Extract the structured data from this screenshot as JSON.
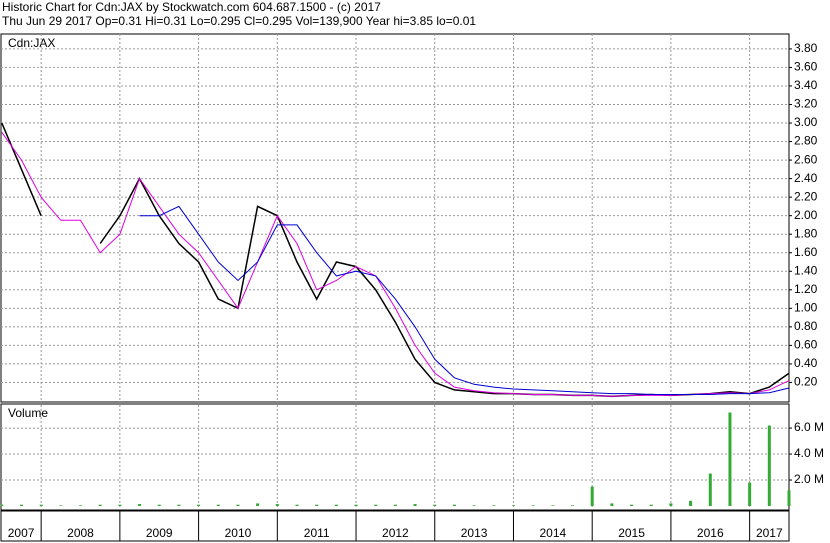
{
  "header": {
    "title": "Historic Chart for Cdn:JAX by Stockwatch.com 604.687.1500 - (c) 2017",
    "subtitle": "Thu Jun 29 2017  Op=0.31  Hi=0.31  Lo=0.295  Cl=0.295  Vol=139,900  Year hi=3.85  lo=0.01"
  },
  "chart_data": [
    {
      "type": "line",
      "label": "Cdn:JAX",
      "x": [
        2007.5,
        2007.75,
        2008.0,
        2008.25,
        2008.5,
        2008.75,
        2009.0,
        2009.25,
        2009.5,
        2009.75,
        2010.0,
        2010.25,
        2010.5,
        2010.75,
        2011.0,
        2011.25,
        2011.5,
        2011.75,
        2012.0,
        2012.25,
        2012.5,
        2012.75,
        2013.0,
        2013.25,
        2013.5,
        2013.75,
        2014.0,
        2014.25,
        2014.5,
        2014.75,
        2015.0,
        2015.25,
        2015.5,
        2015.75,
        2016.0,
        2016.25,
        2016.5,
        2016.75,
        2017.0,
        2017.25,
        2017.5
      ],
      "series": [
        {
          "color": "#000000",
          "values": [
            3.0,
            2.5,
            2.0,
            null,
            null,
            1.7,
            2.0,
            2.4,
            2.0,
            1.7,
            1.5,
            1.1,
            1.0,
            2.1,
            2.0,
            1.5,
            1.1,
            1.5,
            1.45,
            1.2,
            0.85,
            0.45,
            0.2,
            0.12,
            0.1,
            0.08,
            0.08,
            0.07,
            0.07,
            0.06,
            0.06,
            0.05,
            0.06,
            0.07,
            0.06,
            0.07,
            0.08,
            0.1,
            0.08,
            0.15,
            0.3
          ]
        },
        {
          "color": "#e000e0",
          "values": [
            2.9,
            2.6,
            2.2,
            1.95,
            1.95,
            1.6,
            1.8,
            2.4,
            2.1,
            1.8,
            1.6,
            1.3,
            1.0,
            1.5,
            2.0,
            1.7,
            1.2,
            1.3,
            1.45,
            1.35,
            1.0,
            0.6,
            0.3,
            0.15,
            0.11,
            0.09,
            0.08,
            0.07,
            0.07,
            0.06,
            0.06,
            0.05,
            0.06,
            0.06,
            0.06,
            0.07,
            0.08,
            0.09,
            0.08,
            0.12,
            0.22
          ]
        },
        {
          "color": "#0000d0",
          "values": [
            null,
            null,
            null,
            null,
            null,
            null,
            null,
            2.0,
            2.0,
            2.1,
            1.8,
            1.5,
            1.3,
            1.5,
            1.9,
            1.9,
            1.6,
            1.35,
            1.4,
            1.35,
            1.1,
            0.8,
            0.45,
            0.25,
            0.18,
            0.15,
            0.13,
            0.12,
            0.11,
            0.1,
            0.09,
            0.08,
            0.08,
            0.07,
            0.07,
            0.07,
            0.07,
            0.08,
            0.08,
            0.09,
            0.14
          ]
        }
      ],
      "xlim": [
        2007.49,
        2017.5
      ],
      "ylim": [
        0,
        3.95
      ],
      "yticks": [
        {
          "value": 0.2,
          "label": "0.20"
        },
        {
          "value": 0.4,
          "label": "0.40"
        },
        {
          "value": 0.6,
          "label": "0.60"
        },
        {
          "value": 0.8,
          "label": "0.80"
        },
        {
          "value": 1.0,
          "label": "1.00"
        },
        {
          "value": 1.2,
          "label": "1.20"
        },
        {
          "value": 1.4,
          "label": "1.40"
        },
        {
          "value": 1.6,
          "label": "1.60"
        },
        {
          "value": 1.8,
          "label": "1.80"
        },
        {
          "value": 2.0,
          "label": "2.00"
        },
        {
          "value": 2.2,
          "label": "2.20"
        },
        {
          "value": 2.4,
          "label": "2.40"
        },
        {
          "value": 2.6,
          "label": "2.60"
        },
        {
          "value": 2.8,
          "label": "2.80"
        },
        {
          "value": 3.0,
          "label": "3.00"
        },
        {
          "value": 3.2,
          "label": "3.20"
        },
        {
          "value": 3.4,
          "label": "3.40"
        },
        {
          "value": 3.6,
          "label": "3.60"
        },
        {
          "value": 3.8,
          "label": "3.80"
        }
      ],
      "grid": true
    },
    {
      "type": "bar",
      "label": "Volume",
      "color": "#33aa33",
      "x": [
        2007.5,
        2007.75,
        2008.0,
        2008.25,
        2008.5,
        2008.75,
        2009.0,
        2009.25,
        2009.5,
        2009.75,
        2010.0,
        2010.25,
        2010.5,
        2010.75,
        2011.0,
        2011.25,
        2011.5,
        2011.75,
        2012.0,
        2012.25,
        2012.5,
        2012.75,
        2013.0,
        2013.25,
        2013.5,
        2013.75,
        2014.0,
        2014.25,
        2014.5,
        2014.75,
        2015.0,
        2015.25,
        2015.5,
        2015.75,
        2016.0,
        2016.25,
        2016.5,
        2016.75,
        2017.0,
        2017.25,
        2017.5
      ],
      "values": [
        0.1,
        0.1,
        0.1,
        0.05,
        0.05,
        0.1,
        0.1,
        0.15,
        0.1,
        0.1,
        0.1,
        0.1,
        0.1,
        0.2,
        0.15,
        0.1,
        0.1,
        0.1,
        0.1,
        0.1,
        0.1,
        0.15,
        0.1,
        0.1,
        0.05,
        0.05,
        0.05,
        0.05,
        0.05,
        0.05,
        1.5,
        0.2,
        0.1,
        0.1,
        0.2,
        0.4,
        2.5,
        7.2,
        1.8,
        6.2,
        1.2
      ],
      "xlim": [
        2007.49,
        2017.5
      ],
      "ylim": [
        0,
        7.7
      ],
      "yticks": [
        {
          "value": 2,
          "label": "2.0 M"
        },
        {
          "value": 4,
          "label": "4.0 M"
        },
        {
          "value": 6,
          "label": "6.0 M"
        }
      ],
      "xticks": [
        2007,
        2008,
        2009,
        2010,
        2011,
        2012,
        2013,
        2014,
        2015,
        2016,
        2017
      ],
      "grid": true
    }
  ]
}
